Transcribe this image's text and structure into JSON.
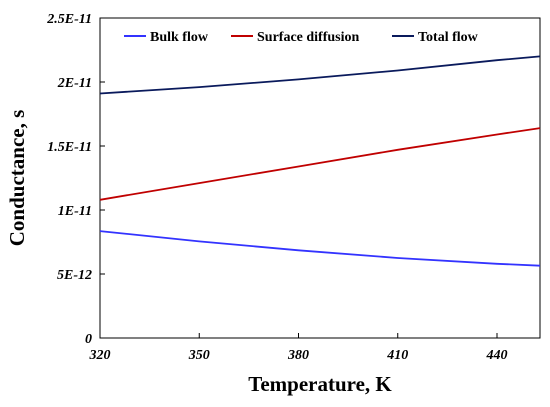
{
  "chart_data": {
    "type": "line",
    "xlabel": "Temperature, K",
    "ylabel": "Conductance, s",
    "xlim": [
      320,
      453
    ],
    "ylim": [
      0,
      2.5e-11
    ],
    "xticks": [
      320,
      350,
      380,
      410,
      440
    ],
    "xtick_labels": [
      "320",
      "350",
      "380",
      "410",
      "440"
    ],
    "yticks": [
      0,
      5e-12,
      1e-11,
      1.5e-11,
      2e-11,
      2.5e-11
    ],
    "ytick_labels": [
      "0",
      "5E-12",
      "1E-11",
      "1.5E-11",
      "2E-11",
      "2.5E-11"
    ],
    "grid": false,
    "legend_position": "top",
    "x": [
      320,
      350,
      380,
      410,
      440,
      453
    ],
    "series": [
      {
        "name": "Bulk flow",
        "color": "#3333ff",
        "values": [
          8.35e-12,
          7.55e-12,
          6.85e-12,
          6.25e-12,
          5.8e-12,
          5.65e-12
        ]
      },
      {
        "name": "Surface diffusion",
        "color": "#c00000",
        "values": [
          1.08e-11,
          1.21e-11,
          1.34e-11,
          1.47e-11,
          1.59e-11,
          1.64e-11
        ]
      },
      {
        "name": "Total flow",
        "color": "#0a1a5c",
        "values": [
          1.91e-11,
          1.96e-11,
          2.02e-11,
          2.09e-11,
          2.17e-11,
          2.2e-11
        ]
      }
    ]
  }
}
